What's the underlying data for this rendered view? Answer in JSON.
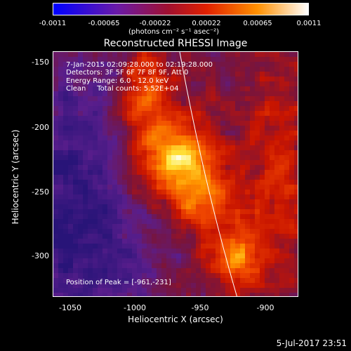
{
  "colorbar": {
    "ticks": [
      "-0.0011",
      "-0.00065",
      "-0.00022",
      "0.00022",
      "0.00065",
      "0.0011"
    ],
    "units": "(photons cm⁻² s⁻¹ asec⁻²)",
    "colors": [
      "#0000ff",
      "#8000a0",
      "#c00000",
      "#ff6000",
      "#ffd000",
      "#ffffff"
    ]
  },
  "plot": {
    "title": "Reconstructed RHESSI Image",
    "xlabel": "Heliocentric X (arcsec)",
    "ylabel": "Heliocentric Y (arcsec)",
    "xticks": [
      "-1050",
      "-1000",
      "-950",
      "-900"
    ],
    "yticks": [
      "-150",
      "-200",
      "-250",
      "-300"
    ],
    "annotations": [
      "7-Jan-2015 02:09:28.000 to 02:19:28.000",
      "Detectors: 3F 5F 6F 7F 8F 9F, Att 0",
      "Energy Range: 6.0 - 12.0 keV",
      "Clean     Total counts: 5.52E+04"
    ],
    "peak_label": "Position of Peak = [-961,-231]"
  },
  "footer": {
    "date": "5-Jul-2017 23:51"
  }
}
